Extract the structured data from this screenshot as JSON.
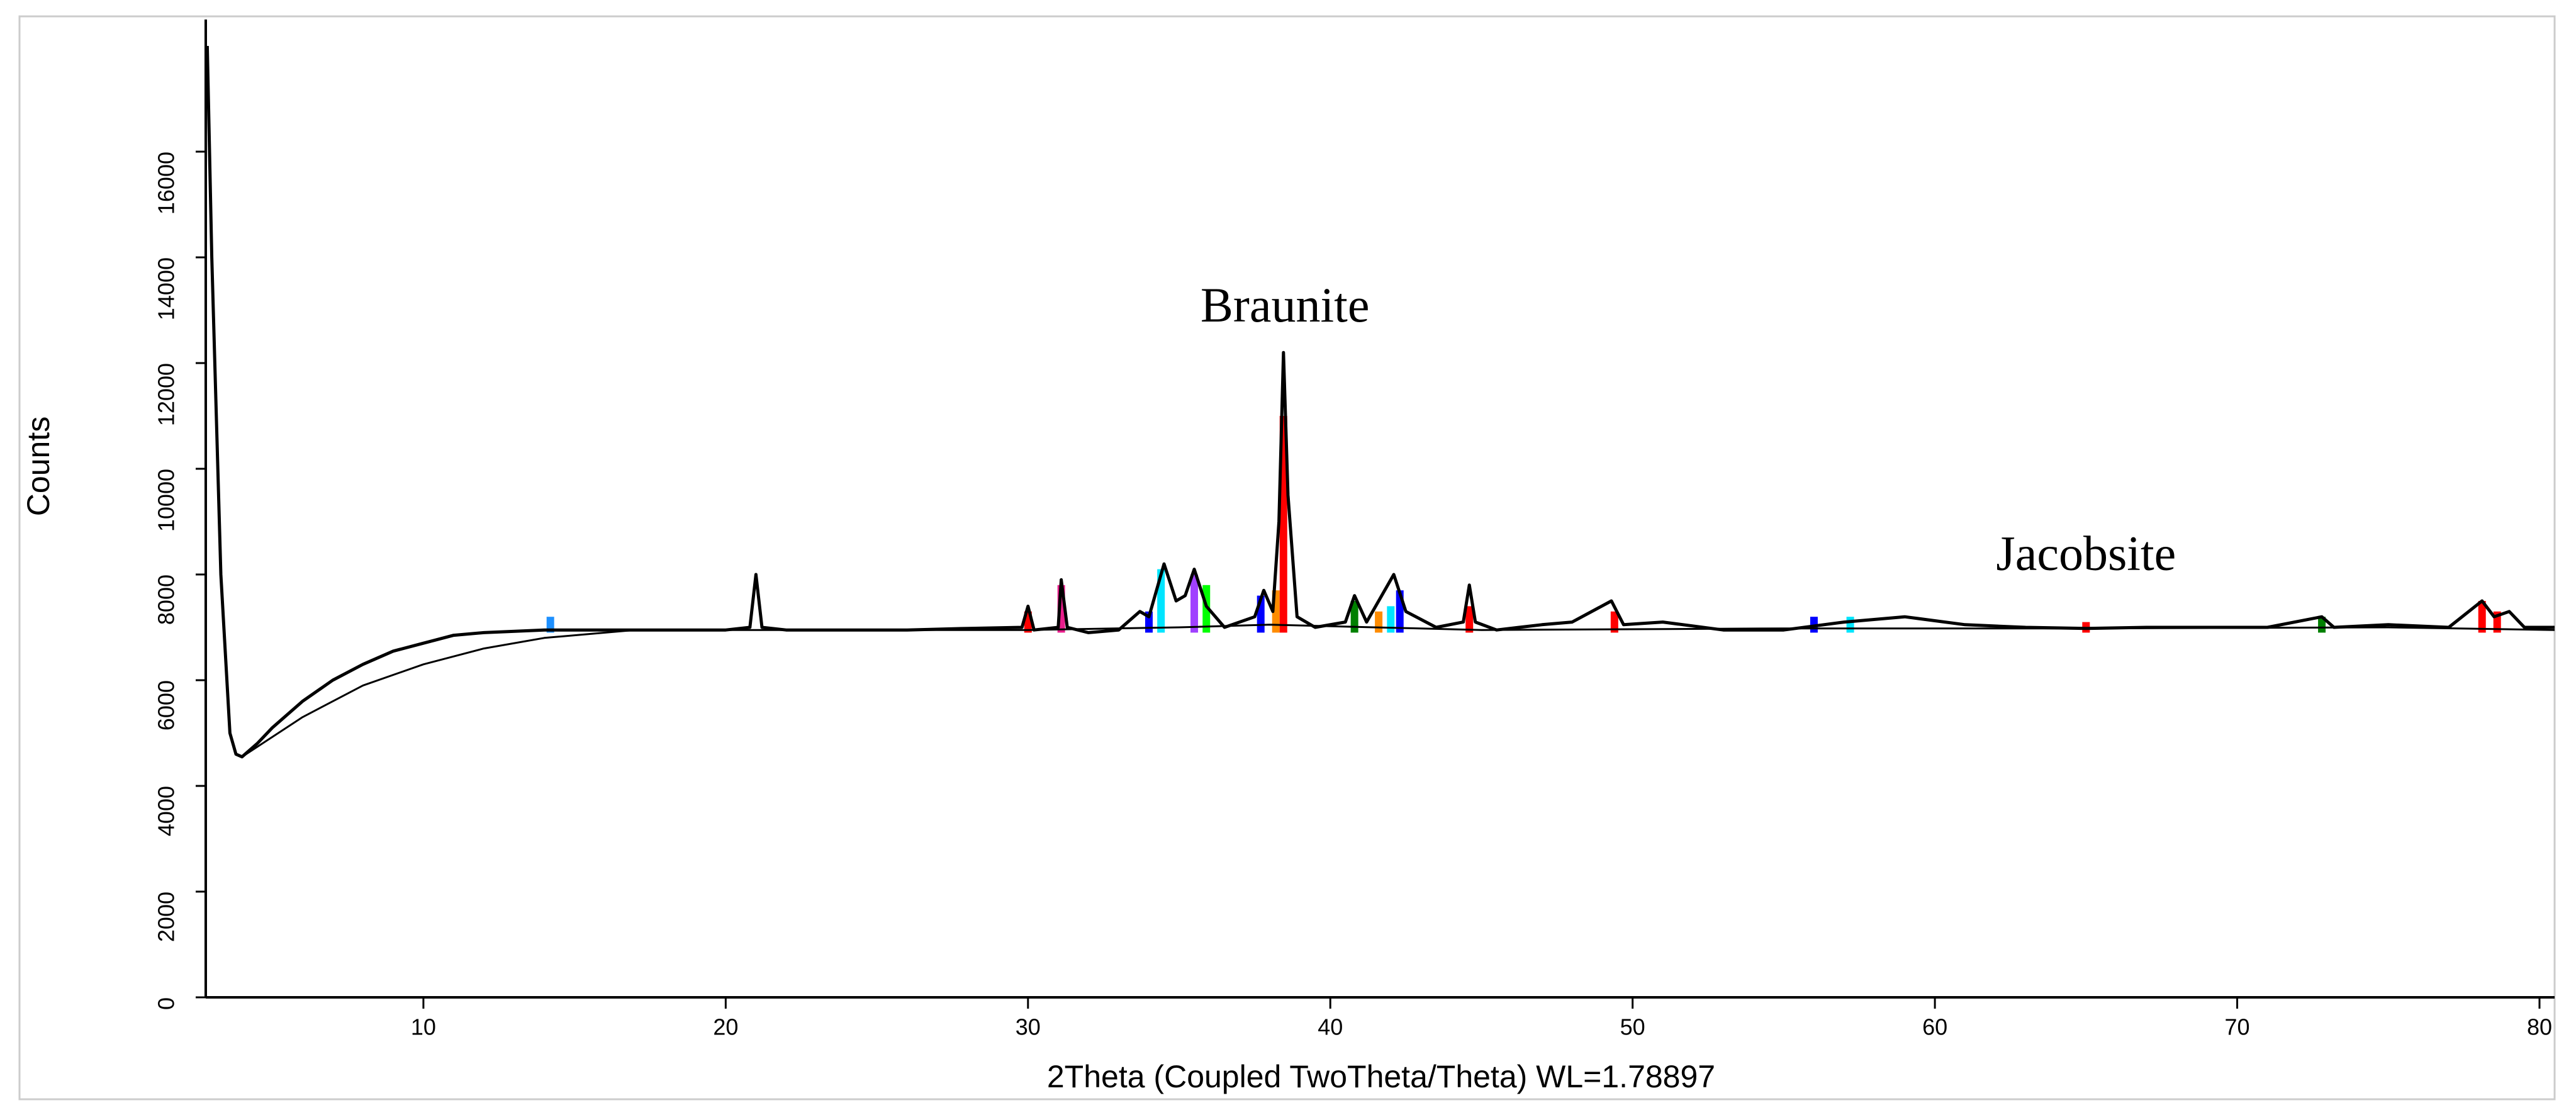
{
  "chart_data": {
    "type": "line",
    "xlabel": "2Theta (Coupled TwoTheta/Theta) WL=1.78897",
    "ylabel": "Counts",
    "xlim": [
      2.8,
      80.5
    ],
    "ylim": [
      0,
      18500
    ],
    "xticks": [
      10,
      20,
      30,
      40,
      50,
      60,
      70,
      80
    ],
    "yticks": [
      0,
      2000,
      4000,
      6000,
      8000,
      10000,
      12000,
      14000,
      16000
    ],
    "annotations": [
      {
        "text": "Braunite",
        "x": 38.5,
        "y": 13000
      },
      {
        "text": "Jacobsite",
        "x": 65,
        "y": 8300
      }
    ],
    "series": [
      {
        "color": "#000000",
        "x": [
          2.85,
          3.0,
          3.3,
          3.6,
          3.8,
          4.0,
          4.5,
          5,
          6,
          7,
          8,
          9,
          10,
          11,
          12,
          14,
          16,
          18,
          20,
          20.8,
          21.0,
          21.2,
          22,
          24,
          26,
          28,
          29.8,
          30.0,
          30.2,
          31.0,
          31.1,
          31.3,
          32,
          33,
          33.7,
          34,
          34.5,
          34.9,
          35.2,
          35.5,
          35.9,
          36.5,
          37.5,
          37.8,
          38.1,
          38.3,
          38.45,
          38.6,
          38.9,
          39.5,
          40.5,
          40.8,
          41.2,
          41.7,
          42.1,
          42.5,
          43.5,
          44.4,
          44.6,
          44.8,
          45.5,
          47,
          48,
          49.3,
          49.7,
          51,
          53,
          55,
          57,
          59,
          61,
          63,
          65,
          67,
          69,
          71,
          72.8,
          73.2,
          75,
          77,
          78.1,
          78.5,
          79,
          79.5,
          80.5
        ],
        "values": [
          18000,
          14000,
          8000,
          5000,
          4600,
          4550,
          4800,
          5100,
          5600,
          6000,
          6300,
          6550,
          6700,
          6850,
          6900,
          6950,
          6950,
          6950,
          6950,
          7000,
          8000,
          7000,
          6950,
          6950,
          6950,
          6980,
          7000,
          7400,
          6950,
          7000,
          7900,
          7000,
          6900,
          6950,
          7300,
          7200,
          8200,
          7500,
          7600,
          8100,
          7400,
          7000,
          7200,
          7700,
          7300,
          9000,
          12200,
          9500,
          7200,
          7000,
          7100,
          7600,
          7100,
          7600,
          8000,
          7300,
          7000,
          7100,
          7800,
          7100,
          6950,
          7050,
          7100,
          7500,
          7050,
          7100,
          6950,
          6950,
          7100,
          7200,
          7050,
          7000,
          6980,
          7000,
          7000,
          7000,
          7200,
          7000,
          7050,
          7000,
          7500,
          7200,
          7300,
          7000,
          7000
        ]
      },
      {
        "color": "#000000",
        "x": [
          4.0,
          6,
          8,
          10,
          12,
          14,
          17,
          20,
          30,
          35,
          38,
          45,
          55,
          65,
          75,
          80.5
        ],
        "values": [
          4550,
          5300,
          5900,
          6300,
          6600,
          6800,
          6950,
          6950,
          6950,
          7000,
          7050,
          6950,
          6980,
          6980,
          7000,
          6950
        ]
      }
    ],
    "peaks": {
      "base": 6900,
      "x": [
        14.2,
        30.0,
        31.1,
        34.0,
        34.4,
        35.5,
        35.9,
        37.7,
        38.2,
        38.45,
        40.8,
        41.6,
        42.0,
        42.3,
        44.6,
        49.4,
        56,
        57.2,
        65,
        72.8,
        78.1,
        78.6
      ],
      "values": [
        7200,
        7300,
        7800,
        7300,
        8100,
        8000,
        7800,
        7600,
        7700,
        11000,
        7500,
        7300,
        7400,
        7700,
        7400,
        7300,
        7200,
        7200,
        7100,
        7200,
        7500,
        7300
      ],
      "colors": [
        "#1e90ff",
        "#ff0000",
        "#e91e8c",
        "#0000ff",
        "#00e5ff",
        "#a040ff",
        "#00ff00",
        "#0000ff",
        "#ff8c00",
        "#ff0000",
        "#008000",
        "#ff8c00",
        "#00e5ff",
        "#0000ff",
        "#ff0000",
        "#ff0000",
        "#0000ff",
        "#00e5ff",
        "#ff0000",
        "#008000",
        "#ff0000",
        "#ff0000"
      ]
    }
  }
}
